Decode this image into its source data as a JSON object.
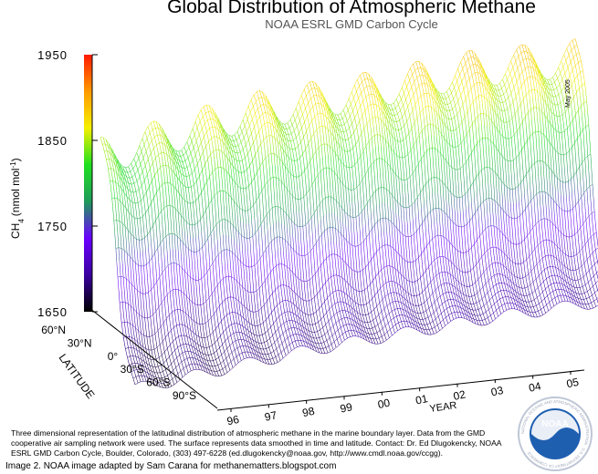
{
  "chart_data": {
    "type": "surface-3d",
    "title": "Global Distribution of Atmospheric Methane",
    "subtitle": "NOAA ESRL GMD Carbon Cycle",
    "zlabel": "CH4 (nmol mol-1)",
    "zlabel_main": "CH",
    "zlabel_sub": "4",
    "zlabel_unit": "(nmol mol",
    "zlabel_sup": "-1",
    "zlabel_close": ")",
    "zlim": [
      1650,
      1950
    ],
    "z_ticks": [
      "1950",
      "1850",
      "1750",
      "1650"
    ],
    "ylabel": "LATITUDE",
    "latitude_ticks": [
      "60°N",
      "30°N",
      "0°",
      "30°S",
      "60°S",
      "90°S"
    ],
    "xlabel": "YEAR",
    "year_ticks": [
      "96",
      "97",
      "98",
      "99",
      "00",
      "01",
      "02",
      "03",
      "04",
      "05"
    ],
    "series": [
      {
        "year": "96",
        "north_peak": 1830,
        "south_base": 1670
      },
      {
        "year": "97",
        "north_peak": 1840,
        "south_base": 1675
      },
      {
        "year": "98",
        "north_peak": 1850,
        "south_base": 1680
      },
      {
        "year": "99",
        "north_peak": 1858,
        "south_base": 1685
      },
      {
        "year": "00",
        "north_peak": 1860,
        "south_base": 1688
      },
      {
        "year": "01",
        "north_peak": 1862,
        "south_base": 1690
      },
      {
        "year": "02",
        "north_peak": 1866,
        "south_base": 1692
      },
      {
        "year": "03",
        "north_peak": 1870,
        "south_base": 1694
      },
      {
        "year": "04",
        "north_peak": 1868,
        "south_base": 1694
      },
      {
        "year": "05",
        "north_peak": 1866,
        "south_base": 1695
      }
    ],
    "colorscale": [
      "#000000",
      "#3a00a0",
      "#6a00ff",
      "#1f9a5a",
      "#20e020",
      "#f4f000",
      "#ff9a00",
      "#ff1a00"
    ],
    "grid": false
  },
  "date_stamp": "May 2005",
  "caption": "Three dimensional representation of the latitudinal distribution of atmospheric methane in the marine boundary layer.  Data from the GMD cooperative air sampling network were used.  The surface represents data smoothed in time and latitude.  Contact:  Dr. Ed Dlugokencky, NOAA ESRL GMD Carbon Cycle, Boulder, Colorado, (303) 497-6228 (ed.dlugokencky@noaa.gov, http://www.cmdl.noaa.gov/ccgg).",
  "credit": "Image 2. NOAA image adapted by Sam Carana for  methanematters.blogspot.com",
  "logo": {
    "text": "NOAA",
    "ring_text": "NATIONAL OCEANIC AND ATMOSPHERIC ADMINISTRATION · U.S. DEPARTMENT OF COMMERCE"
  }
}
